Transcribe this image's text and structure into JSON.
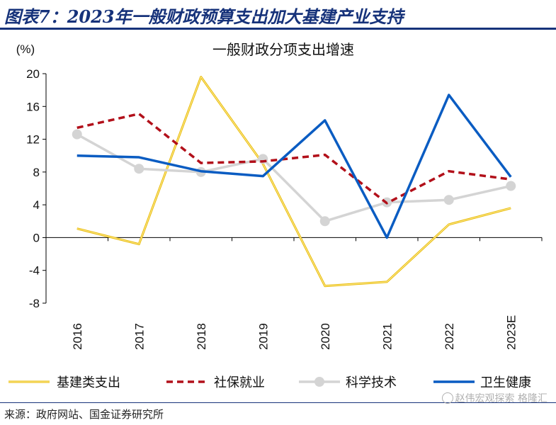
{
  "header": {
    "title": "图表7：2023年一般财政预算支出加大基建产业支持"
  },
  "footer": {
    "source": "来源：政府网站、国金证券研究所"
  },
  "watermark": {
    "text": "赵伟宏观探索",
    "suffix": "格隆汇"
  },
  "chart_data": {
    "type": "line",
    "title": "一般财政分项支出增速",
    "ylabel": "(%)",
    "ylim": [
      -8,
      20
    ],
    "yticks": [
      20,
      16,
      12,
      8,
      4,
      0,
      -4,
      -8
    ],
    "categories": [
      "2016",
      "2017",
      "2018",
      "2019",
      "2020",
      "2021",
      "2022",
      "2023E"
    ],
    "legend_position": "bottom",
    "grid": false,
    "series": [
      {
        "name": "基建类支出",
        "color": "#f5c400",
        "style": "solid",
        "marker": false,
        "values": [
          1.1,
          -0.8,
          19.6,
          9.0,
          -5.9,
          -5.4,
          1.6,
          3.6
        ]
      },
      {
        "name": "社保就业",
        "color": "#b2101a",
        "style": "dashed",
        "marker": false,
        "values": [
          13.4,
          15.1,
          9.1,
          9.3,
          10.1,
          4.2,
          8.1,
          7.1
        ]
      },
      {
        "name": "科学技术",
        "color": "#d4d4d4",
        "style": "solid",
        "marker": true,
        "values": [
          12.6,
          8.4,
          8.0,
          9.6,
          2.0,
          4.3,
          4.6,
          6.3
        ]
      },
      {
        "name": "卫生健康",
        "color": "#0a5cc2",
        "style": "solid",
        "marker": false,
        "values": [
          10.0,
          9.8,
          8.1,
          7.5,
          14.3,
          0.0,
          17.4,
          7.4
        ]
      }
    ]
  }
}
